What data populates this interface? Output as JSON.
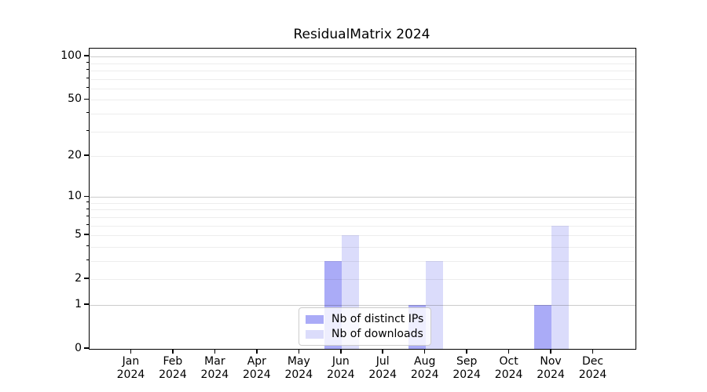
{
  "title": "ResidualMatrix 2024",
  "chart_data": {
    "type": "bar",
    "title": "ResidualMatrix 2024",
    "categories": [
      "Jan",
      "Feb",
      "Mar",
      "Apr",
      "May",
      "Jun",
      "Jul",
      "Aug",
      "Sep",
      "Oct",
      "Nov",
      "Dec"
    ],
    "year": "2024",
    "series": [
      {
        "name": "Nb of distinct IPs",
        "color": "#aaabf7",
        "values": [
          0,
          0,
          0,
          0,
          0,
          3,
          0,
          1,
          0,
          0,
          1,
          0
        ]
      },
      {
        "name": "Nb of downloads",
        "color": "#dbdcfb",
        "values": [
          0,
          0,
          0,
          0,
          0,
          5,
          0,
          3,
          0,
          0,
          6,
          0
        ]
      }
    ],
    "xlabel": "",
    "ylabel": "",
    "yscale": "log1p",
    "ylim": [
      0,
      113.5
    ],
    "yticks": [
      0,
      1,
      2,
      5,
      10,
      20,
      50,
      100
    ],
    "ygrid_major": [
      1,
      10,
      100
    ],
    "ygrid_minor": [
      2,
      3,
      4,
      5,
      6,
      7,
      8,
      9,
      20,
      30,
      40,
      50,
      60,
      70,
      80,
      90
    ],
    "yticks_minor": [
      3,
      4,
      6,
      7,
      8,
      9,
      30,
      40,
      60,
      70,
      80,
      90
    ],
    "grid": "horizontal",
    "legend_position": "lower center",
    "colors": {
      "axis": "#000000",
      "grid_major": "#cfcfcf",
      "grid_minor": "#ededed",
      "legend_border": "#cccccc",
      "background": "#ffffff"
    }
  }
}
